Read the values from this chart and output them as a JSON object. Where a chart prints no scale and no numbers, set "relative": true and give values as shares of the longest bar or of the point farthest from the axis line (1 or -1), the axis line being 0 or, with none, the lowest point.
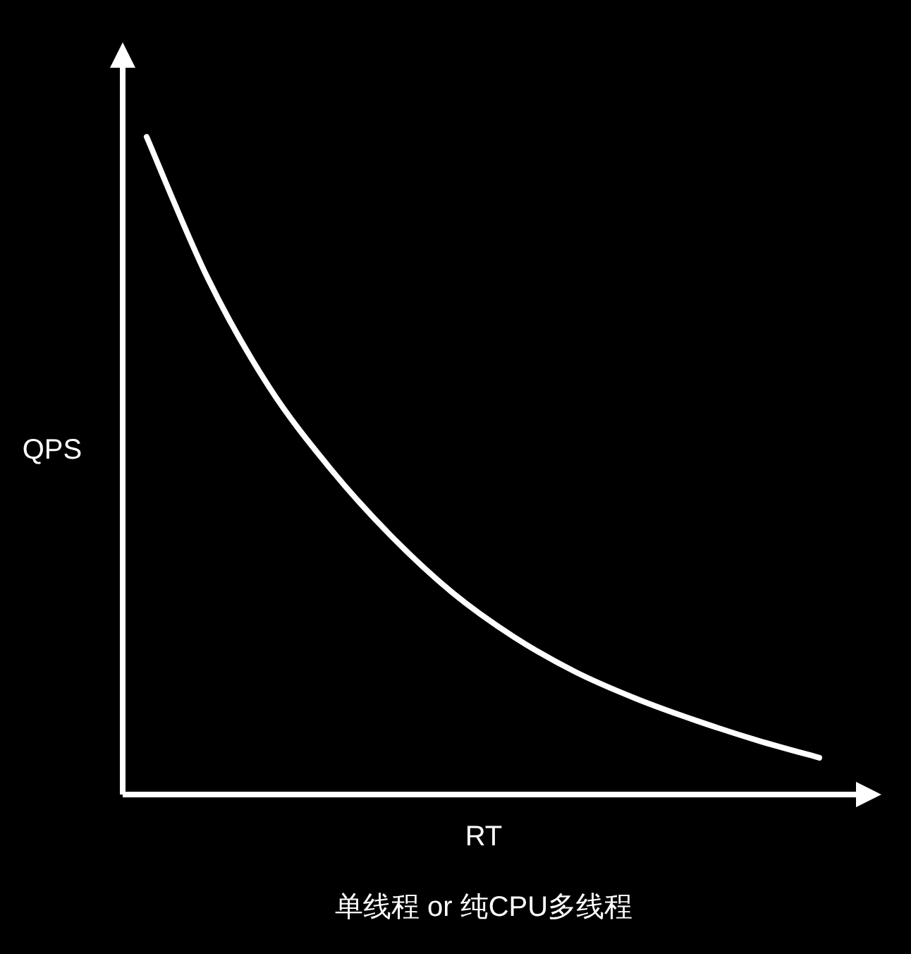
{
  "chart_data": {
    "type": "line",
    "relative": true,
    "xlabel": "RT",
    "ylabel": "QPS",
    "annotations": [
      "单线程 or 纯CPU多线程"
    ],
    "categories": [
      null,
      null,
      null,
      null,
      null,
      null,
      null,
      null,
      null,
      null,
      null,
      null
    ],
    "series": [
      {
        "color": "#ffffff",
        "values": [
          1,
          0.785,
          0.62,
          0.496,
          0.393,
          0.307,
          0.24,
          0.187,
          0.146,
          0.112,
          0.082,
          0.056
        ]
      }
    ]
  }
}
